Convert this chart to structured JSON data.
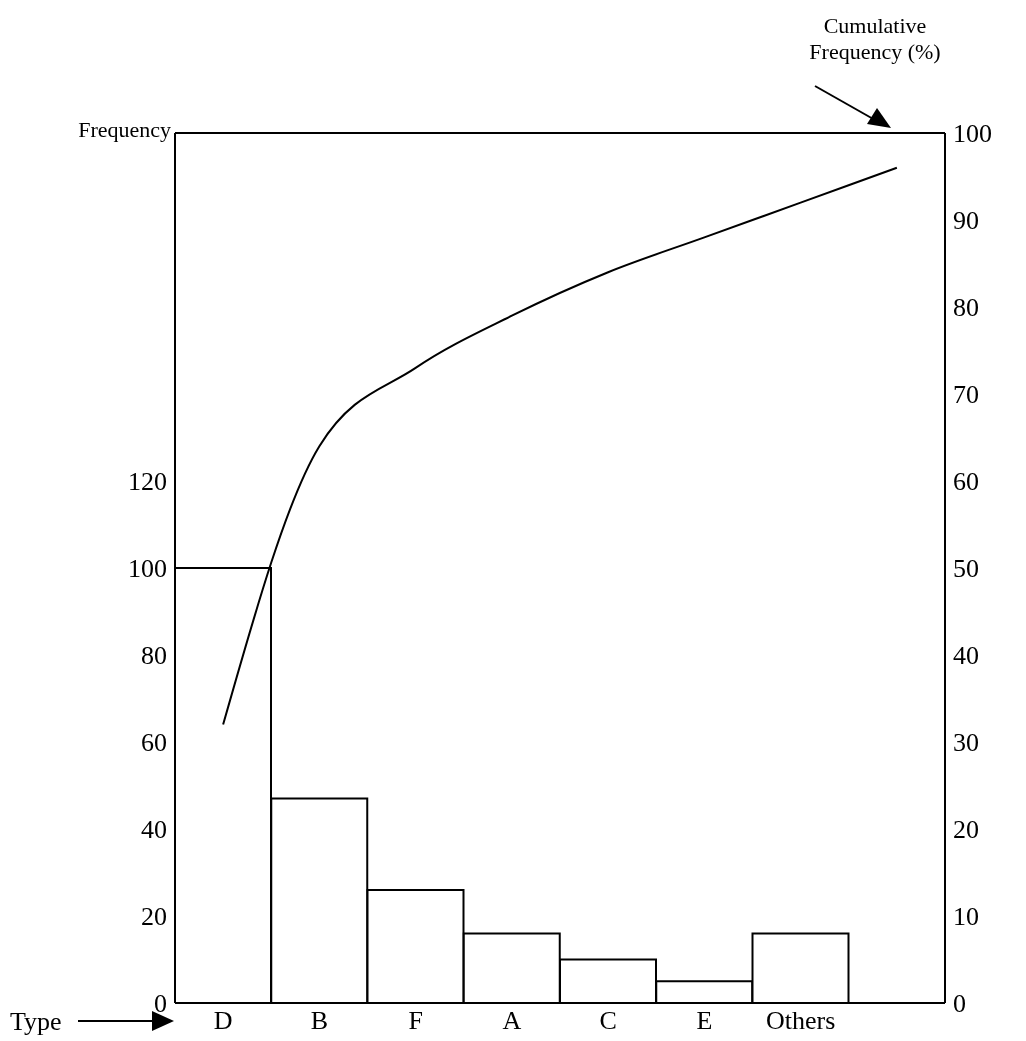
{
  "chart_data": {
    "type": "bar",
    "xlabel": "Type",
    "ylabel": "Frequency",
    "y2label": "Cumulative Frequency (%)",
    "categories": [
      "D",
      "B",
      "F",
      "A",
      "C",
      "E",
      "Others",
      null
    ],
    "series": [
      {
        "color": "#ffffff",
        "values": [
          100,
          47,
          26,
          16,
          10,
          5,
          16,
          null
        ]
      },
      {
        "type": "line",
        "axis": "y2",
        "color": "#000000",
        "values": [
          32,
          64,
          73,
          79,
          84,
          88,
          92,
          96
        ]
      }
    ],
    "ylim": [
      0,
      200
    ],
    "yticks": [
      0,
      20,
      40,
      60,
      80,
      100,
      120
    ],
    "y2lim": [
      0,
      100
    ],
    "y2ticks": [
      0,
      10,
      20,
      30,
      40,
      50,
      60,
      70,
      80,
      90,
      100
    ],
    "marker": "none",
    "line_style": "solid"
  }
}
